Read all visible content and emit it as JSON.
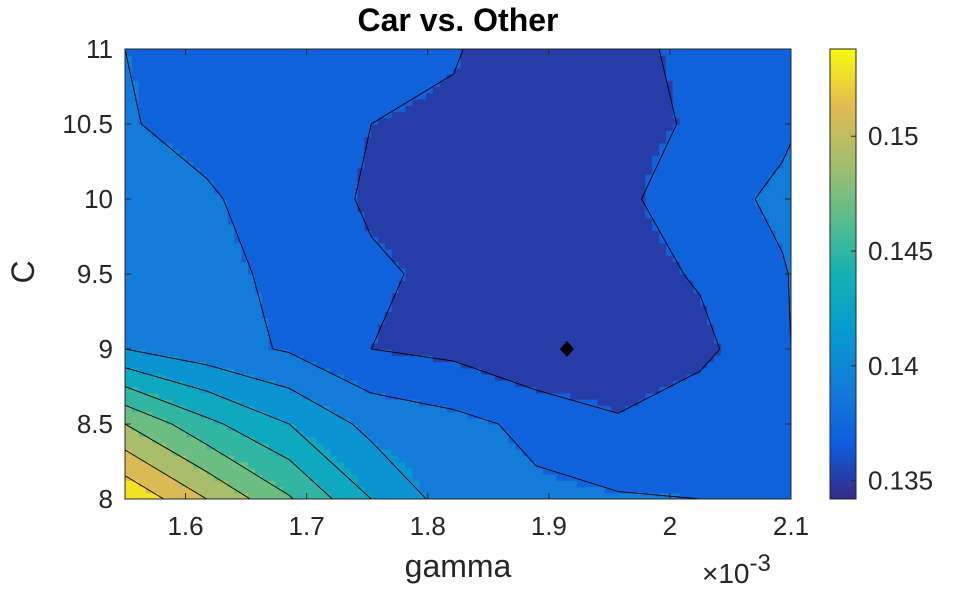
{
  "chart_data": {
    "type": "contour",
    "title": "Car vs. Other",
    "xlabel": "gamma",
    "ylabel": "C",
    "x_multiplier": "×10",
    "x_multiplier_exp": "-3",
    "xlim": [
      1.55,
      2.1
    ],
    "ylim": [
      8,
      11
    ],
    "xticks": [
      1.6,
      1.7,
      1.8,
      1.9,
      2,
      2.1
    ],
    "xtick_labels": [
      "1.6",
      "1.7",
      "1.8",
      "1.9",
      "2",
      "2.1"
    ],
    "yticks": [
      8,
      8.5,
      9,
      9.5,
      10,
      10.5,
      11
    ],
    "ytick_labels": [
      "8",
      "8.5",
      "9",
      "9.5",
      "10",
      "10.5",
      "11"
    ],
    "colorbar": {
      "range": [
        0.1342,
        0.1538
      ],
      "ticks": [
        0.135,
        0.14,
        0.145,
        0.15
      ],
      "tick_labels": [
        "0.135",
        "0.14",
        "0.145",
        "0.15"
      ],
      "colormap": "parula"
    },
    "contour_levels": [
      0.136,
      0.138,
      0.14,
      0.142,
      0.144,
      0.146,
      0.148,
      0.15,
      0.152
    ],
    "grid_x": [
      1.55,
      1.6175,
      1.6857,
      1.7533,
      1.8214,
      1.8893,
      1.9571,
      2.025,
      2.093,
      2.1
    ],
    "grid_y": [
      8,
      8.5,
      9,
      9.5,
      10,
      10.5,
      11
    ],
    "z": [
      [
        0.1538,
        0.15,
        0.1462,
        0.142,
        0.139,
        0.1384,
        0.1382,
        0.138,
        0.138,
        0.138
      ],
      [
        0.148,
        0.1445,
        0.142,
        0.1394,
        0.1386,
        0.1375,
        0.1362,
        0.1372,
        0.1376,
        0.1377
      ],
      [
        0.14,
        0.1388,
        0.1378,
        0.136,
        0.1355,
        0.1342,
        0.1348,
        0.1355,
        0.1376,
        0.138
      ],
      [
        0.1396,
        0.1385,
        0.1376,
        0.1362,
        0.1357,
        0.1345,
        0.1352,
        0.1362,
        0.1378,
        0.1381
      ],
      [
        0.1395,
        0.1383,
        0.1368,
        0.1358,
        0.1357,
        0.1345,
        0.1356,
        0.137,
        0.1385,
        0.1386
      ],
      [
        0.1382,
        0.1372,
        0.1368,
        0.136,
        0.1356,
        0.1345,
        0.1355,
        0.1362,
        0.1375,
        0.1378
      ],
      [
        0.138,
        0.1375,
        0.1373,
        0.1368,
        0.1362,
        0.1345,
        0.1358,
        0.1362,
        0.1372,
        0.1375
      ]
    ],
    "marker": {
      "shape": "diamond",
      "x": 1.915,
      "y": 9,
      "color": "#000000"
    }
  }
}
